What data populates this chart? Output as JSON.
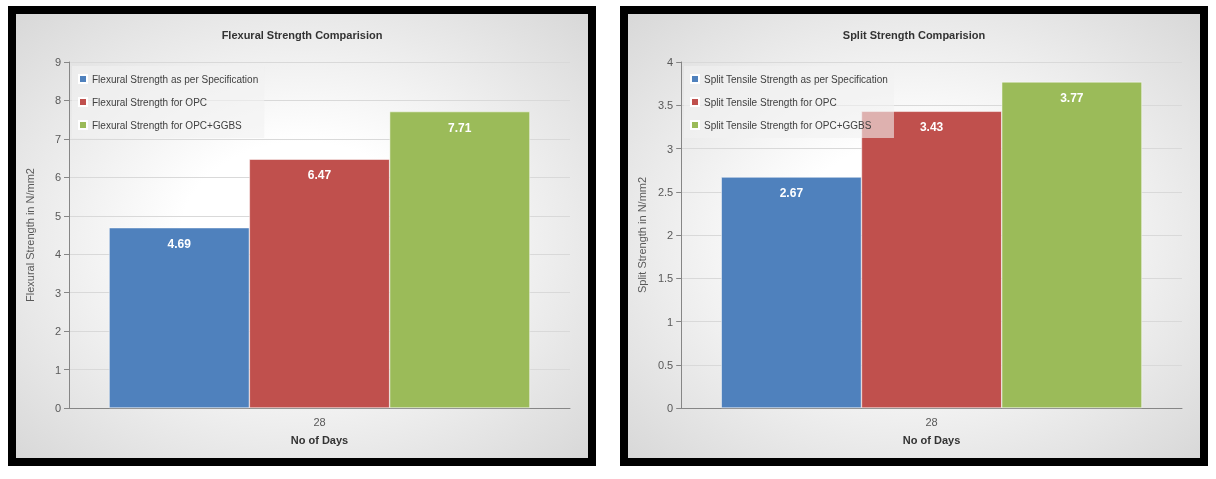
{
  "chart_data": [
    {
      "type": "bar",
      "title": "Flexural Strength Comparision",
      "xlabel": "No of Days",
      "ylabel": "Flexural Strength in N/mm2",
      "categories": [
        "28"
      ],
      "series": [
        {
          "name": "Flexural Strength as per Specification",
          "color": "#4f81bd",
          "values": [
            4.69
          ]
        },
        {
          "name": "Flexural Strength for OPC",
          "color": "#c0504d",
          "values": [
            6.47
          ]
        },
        {
          "name": "Flexural Strength for OPC+GGBS",
          "color": "#9bbb59",
          "values": [
            7.71
          ]
        }
      ],
      "ylim": [
        0,
        9
      ],
      "yticks": [
        0,
        1,
        2,
        3,
        4,
        5,
        6,
        7,
        8,
        9
      ],
      "grid": "y",
      "legend": "top left",
      "data_labels": true
    },
    {
      "type": "bar",
      "title": "Split Strength Comparision",
      "xlabel": "No of Days",
      "ylabel": "Split Strength in N/mm2",
      "categories": [
        "28"
      ],
      "series": [
        {
          "name": "Split Tensile Strength as per Specification",
          "color": "#4f81bd",
          "values": [
            2.67
          ]
        },
        {
          "name": "Split Tensile Strength for OPC",
          "color": "#c0504d",
          "values": [
            3.43
          ]
        },
        {
          "name": "Split Tensile Strength for OPC+GGBS",
          "color": "#9bbb59",
          "values": [
            3.77
          ]
        }
      ],
      "ylim": [
        0,
        4
      ],
      "yticks": [
        0,
        0.5,
        1,
        1.5,
        2,
        2.5,
        3,
        3.5,
        4
      ],
      "grid": "y",
      "legend": "top left",
      "data_labels": true
    }
  ]
}
